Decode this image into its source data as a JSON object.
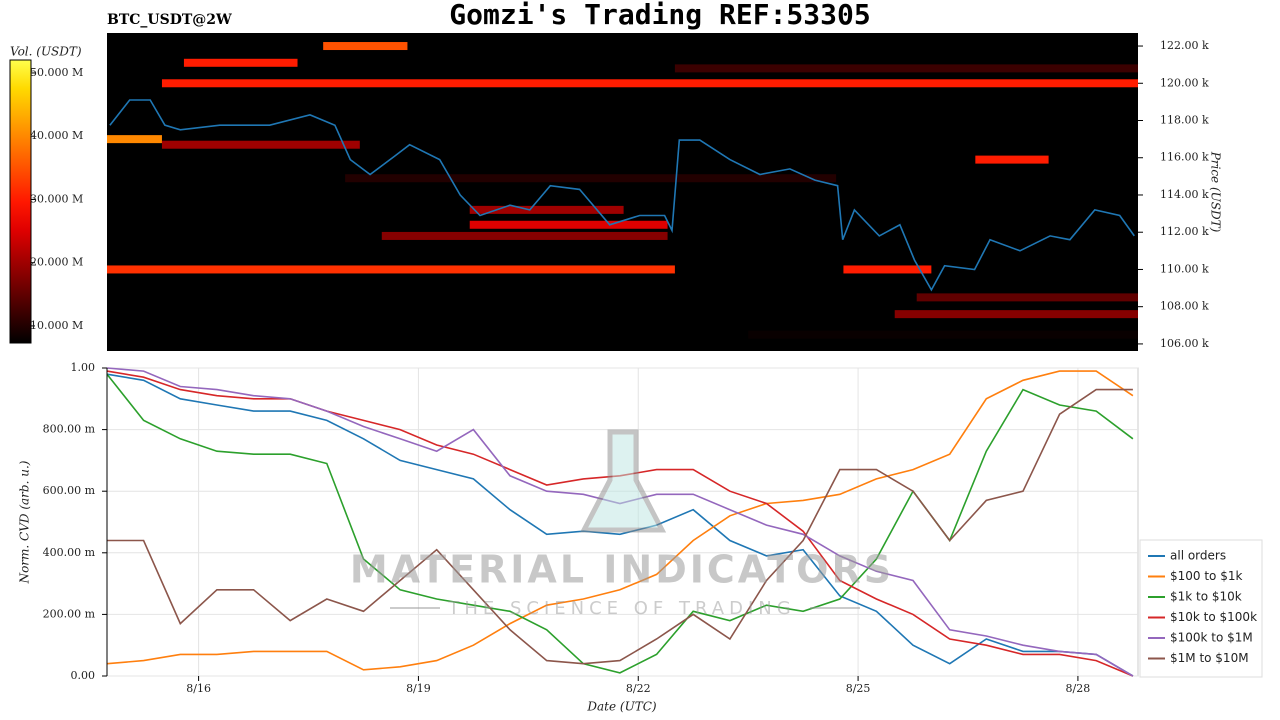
{
  "chart_data": [
    {
      "type": "heatmap",
      "title": "Gomzi's Trading REF:53305",
      "subtitle": "BTC_USDT@2W",
      "ylabel": "Price (USDT)",
      "ylim": [
        105.62,
        122.7
      ],
      "yticks": [
        {
          "value": 106,
          "label": "106.00 k"
        },
        {
          "value": 108,
          "label": "108.00 k"
        },
        {
          "value": 110,
          "label": "110.00 k"
        },
        {
          "value": 112,
          "label": "112.00 k"
        },
        {
          "value": 114,
          "label": "114.00 k"
        },
        {
          "value": 116,
          "label": "116.00 k"
        },
        {
          "value": 118,
          "label": "118.00 k"
        },
        {
          "value": 120,
          "label": "120.00 k"
        },
        {
          "value": 122,
          "label": "122.00 k"
        }
      ],
      "xlim": [
        14.75,
        28.82
      ],
      "colormap": "hot",
      "colorbar_label": "Vol. (USDT)",
      "clim": [
        7.3,
        52.05
      ],
      "cticks": [
        {
          "value": 10,
          "label": "10.000 M"
        },
        {
          "value": 20,
          "label": "20.000 M"
        },
        {
          "value": 30,
          "label": "30.000 M"
        },
        {
          "value": 40,
          "label": "40.000 M"
        },
        {
          "value": 50,
          "label": "50.000 M"
        }
      ],
      "bands": {
        "price": [
          120.0,
          121.1,
          122.0,
          110.0,
          110.0,
          117.0,
          115.9,
          112.4,
          111.8,
          107.6,
          108.5,
          116.7,
          113.2,
          120.8,
          114.9,
          106.5
        ],
        "start": [
          15.5,
          15.8,
          17.7,
          14.75,
          24.8,
          14.75,
          26.6,
          19.7,
          18.5,
          25.5,
          25.8,
          15.5,
          19.7,
          22.5,
          18.0,
          23.5
        ],
        "end": [
          28.82,
          17.35,
          18.85,
          22.5,
          26.0,
          15.5,
          27.6,
          22.4,
          22.4,
          28.82,
          28.82,
          18.2,
          21.8,
          28.82,
          24.7,
          28.82
        ],
        "volume": [
          30,
          30,
          35,
          32,
          30,
          40,
          30,
          25,
          18,
          18,
          15,
          20,
          20,
          12,
          10,
          8
        ]
      },
      "line": {
        "color": "#1f77b4",
        "x": [
          14.79,
          15.06,
          15.34,
          15.54,
          15.75,
          16.29,
          16.97,
          17.52,
          17.86,
          18.07,
          18.34,
          18.68,
          18.88,
          19.29,
          19.57,
          19.84,
          20.25,
          20.52,
          20.8,
          21.2,
          21.61,
          22.02,
          22.36,
          22.46,
          22.56,
          22.84,
          23.25,
          23.66,
          24.07,
          24.41,
          24.72,
          24.79,
          24.95,
          25.29,
          25.57,
          25.77,
          26.0,
          26.18,
          26.59,
          26.8,
          27.21,
          27.62,
          27.89,
          28.23,
          28.57,
          28.77
        ],
        "values": [
          117.75,
          119.1,
          119.1,
          117.75,
          117.5,
          117.75,
          117.75,
          118.3,
          117.75,
          115.9,
          115.1,
          116.1,
          116.7,
          115.9,
          114.0,
          112.9,
          113.45,
          113.2,
          114.5,
          114.3,
          112.4,
          112.9,
          112.9,
          112.1,
          116.95,
          116.95,
          115.9,
          115.1,
          115.4,
          114.8,
          114.5,
          111.6,
          113.2,
          111.8,
          112.4,
          110.5,
          108.9,
          110.2,
          110.0,
          111.6,
          111.0,
          111.8,
          111.6,
          113.2,
          112.9,
          111.8
        ]
      }
    },
    {
      "type": "line",
      "xlabel": "Date (UTC)",
      "ylabel": "Norm. CVD (arb. u.)",
      "xlim": [
        14.75,
        28.82
      ],
      "xticks": [
        {
          "value": 16,
          "label": "8/16"
        },
        {
          "value": 19,
          "label": "8/19"
        },
        {
          "value": 22,
          "label": "8/22"
        },
        {
          "value": 25,
          "label": "8/25"
        },
        {
          "value": 28,
          "label": "8/28"
        }
      ],
      "ylim": [
        0,
        1
      ],
      "yticks": [
        {
          "value": 0,
          "label": "0.00"
        },
        {
          "value": 0.2,
          "label": "200.00 m"
        },
        {
          "value": 0.4,
          "label": "400.00 m"
        },
        {
          "value": 0.6,
          "label": "600.00 m"
        },
        {
          "value": 0.8,
          "label": "800.00 m"
        },
        {
          "value": 1,
          "label": "1.00"
        }
      ],
      "grid": true,
      "legend": "right",
      "watermark": [
        "MATERIAL INDICATORS",
        "THE SCIENCE OF TRADING"
      ],
      "x": [
        14.75,
        15.25,
        15.75,
        16.25,
        16.75,
        17.25,
        17.75,
        18.25,
        18.75,
        19.25,
        19.75,
        20.25,
        20.75,
        21.25,
        21.75,
        22.25,
        22.75,
        23.25,
        23.75,
        24.25,
        24.75,
        25.25,
        25.75,
        26.25,
        26.75,
        27.25,
        27.75,
        28.25,
        28.75
      ],
      "series": [
        {
          "name": "all orders",
          "color": "#1f77b4",
          "values": [
            0.98,
            0.96,
            0.9,
            0.88,
            0.86,
            0.86,
            0.83,
            0.77,
            0.7,
            0.67,
            0.64,
            0.54,
            0.46,
            0.47,
            0.46,
            0.49,
            0.54,
            0.44,
            0.39,
            0.41,
            0.26,
            0.21,
            0.1,
            0.04,
            0.12,
            0.08,
            0.08,
            0.07,
            0.0
          ]
        },
        {
          "name": "$100 to $1k",
          "color": "#ff7f0e",
          "values": [
            0.04,
            0.05,
            0.07,
            0.07,
            0.08,
            0.08,
            0.08,
            0.02,
            0.03,
            0.05,
            0.1,
            0.17,
            0.23,
            0.25,
            0.28,
            0.33,
            0.44,
            0.52,
            0.56,
            0.57,
            0.59,
            0.64,
            0.67,
            0.72,
            0.9,
            0.96,
            0.99,
            0.99,
            0.91
          ]
        },
        {
          "name": "$1k to $10k",
          "color": "#2ca02c",
          "values": [
            0.98,
            0.83,
            0.77,
            0.73,
            0.72,
            0.72,
            0.69,
            0.38,
            0.28,
            0.25,
            0.23,
            0.21,
            0.15,
            0.04,
            0.01,
            0.07,
            0.21,
            0.18,
            0.23,
            0.21,
            0.25,
            0.38,
            0.6,
            0.44,
            0.73,
            0.93,
            0.88,
            0.86,
            0.77
          ]
        },
        {
          "name": "$10k to $100k",
          "color": "#d62728",
          "values": [
            0.99,
            0.97,
            0.93,
            0.91,
            0.9,
            0.9,
            0.86,
            0.83,
            0.8,
            0.75,
            0.72,
            0.67,
            0.62,
            0.64,
            0.65,
            0.67,
            0.67,
            0.6,
            0.56,
            0.47,
            0.31,
            0.25,
            0.2,
            0.12,
            0.1,
            0.07,
            0.07,
            0.05,
            0.0
          ]
        },
        {
          "name": "$100k to $1M",
          "color": "#9467bd",
          "values": [
            1.0,
            0.99,
            0.94,
            0.93,
            0.91,
            0.9,
            0.86,
            0.81,
            0.77,
            0.73,
            0.8,
            0.65,
            0.6,
            0.59,
            0.56,
            0.59,
            0.59,
            0.54,
            0.49,
            0.46,
            0.39,
            0.34,
            0.31,
            0.15,
            0.13,
            0.1,
            0.08,
            0.07,
            0.0
          ]
        },
        {
          "name": "$1M to $10M",
          "color": "#8c564b",
          "values": [
            0.44,
            0.44,
            0.17,
            0.28,
            0.28,
            0.18,
            0.25,
            0.21,
            0.31,
            0.41,
            0.28,
            0.15,
            0.05,
            0.04,
            0.05,
            0.12,
            0.2,
            0.12,
            0.31,
            0.44,
            0.67,
            0.67,
            0.6,
            0.44,
            0.57,
            0.6,
            0.85,
            0.93,
            0.93
          ]
        }
      ]
    }
  ]
}
